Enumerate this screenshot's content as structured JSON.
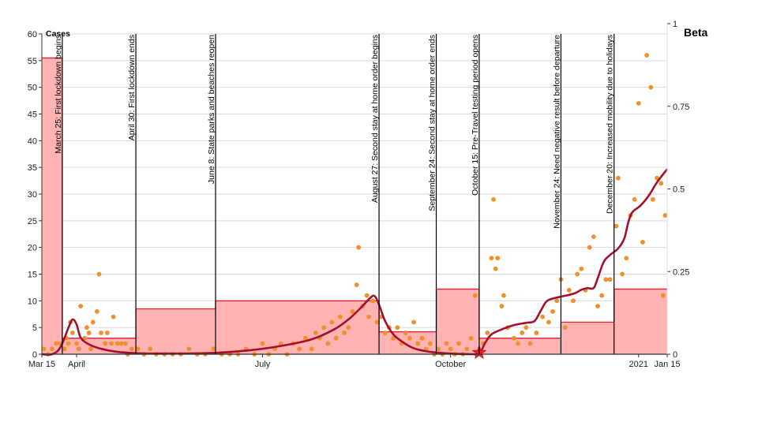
{
  "chart_data": {
    "type": "line",
    "left_axis_label": "Cases",
    "right_axis_label": "Beta",
    "x_range": [
      "2020-03-15",
      "2021-01-15"
    ],
    "x_ticks": [
      {
        "date": "2020-03-15",
        "label": "Mar 15"
      },
      {
        "date": "2020-04-01",
        "label": "April"
      },
      {
        "date": "2020-07-01",
        "label": "July"
      },
      {
        "date": "2020-10-01",
        "label": "October"
      },
      {
        "date": "2021-01-01",
        "label": "2021"
      },
      {
        "date": "2021-01-15",
        "label": "Jan 15"
      }
    ],
    "y_left_range": [
      0,
      60
    ],
    "y_left_ticks": [
      "0",
      "5",
      "10",
      "15",
      "20",
      "25",
      "30",
      "35",
      "40",
      "45",
      "50",
      "55",
      "60"
    ],
    "y_right_range": [
      0,
      1
    ],
    "y_right_ticks": [
      {
        "value": 0,
        "label": "0"
      },
      {
        "value": 0.25,
        "label": "0.25"
      },
      {
        "value": 0.5,
        "label": "0.5"
      },
      {
        "value": 0.75,
        "label": "0.75"
      },
      {
        "value": 1,
        "label": "1"
      }
    ],
    "grid": true,
    "colors": {
      "beta_line": "#a50f2d",
      "cases_dots": "#f28e2b",
      "step_fill": "#ffb3b3",
      "step_line": "#e8202f",
      "marker": "#e8202f"
    },
    "events": [
      {
        "date": "2020-03-25",
        "label": "March 25: First lockdown begins"
      },
      {
        "date": "2020-04-30",
        "label": "April 30: First lockdown ends"
      },
      {
        "date": "2020-06-08",
        "label": "June 8: State parks and beaches reopen"
      },
      {
        "date": "2020-08-27",
        "label": "August 27: Second stay at home order begins"
      },
      {
        "date": "2020-09-24",
        "label": "September 24: Second stay at home order ends"
      },
      {
        "date": "2020-10-15",
        "label": "October 15: Pre-Travel testing period opens"
      },
      {
        "date": "2020-11-24",
        "label": "November 24: Need negative result before departure"
      },
      {
        "date": "2020-12-20",
        "label": "December 20: Increased mobility due to holidays"
      }
    ],
    "step_series": [
      {
        "start": "2020-03-15",
        "end": "2020-03-25",
        "value": 55.5
      },
      {
        "start": "2020-03-25",
        "end": "2020-04-30",
        "value": 3
      },
      {
        "start": "2020-04-30",
        "end": "2020-06-08",
        "value": 8.5
      },
      {
        "start": "2020-06-08",
        "end": "2020-08-27",
        "value": 10
      },
      {
        "start": "2020-08-27",
        "end": "2020-09-24",
        "value": 4.2
      },
      {
        "start": "2020-09-24",
        "end": "2020-10-15",
        "value": 12.2
      },
      {
        "start": "2020-10-15",
        "end": "2020-11-24",
        "value": 3
      },
      {
        "start": "2020-11-24",
        "end": "2020-12-20",
        "value": 6
      },
      {
        "start": "2020-12-20",
        "end": "2021-01-15",
        "value": 12.2
      }
    ],
    "beta_series": [
      [
        "2020-03-15",
        0.0
      ],
      [
        "2020-03-20",
        0.0
      ],
      [
        "2020-03-24",
        0.02
      ],
      [
        "2020-03-28",
        0.08
      ],
      [
        "2020-03-30",
        0.105
      ],
      [
        "2020-04-01",
        0.09
      ],
      [
        "2020-04-03",
        0.05
      ],
      [
        "2020-04-07",
        0.03
      ],
      [
        "2020-04-12",
        0.018
      ],
      [
        "2020-04-20",
        0.008
      ],
      [
        "2020-05-01",
        0.003
      ],
      [
        "2020-05-20",
        0.002
      ],
      [
        "2020-06-08",
        0.004
      ],
      [
        "2020-06-25",
        0.012
      ],
      [
        "2020-07-10",
        0.025
      ],
      [
        "2020-07-25",
        0.045
      ],
      [
        "2020-08-05",
        0.075
      ],
      [
        "2020-08-12",
        0.105
      ],
      [
        "2020-08-18",
        0.14
      ],
      [
        "2020-08-23",
        0.172
      ],
      [
        "2020-08-25",
        0.175
      ],
      [
        "2020-08-27",
        0.15
      ],
      [
        "2020-08-30",
        0.1
      ],
      [
        "2020-09-03",
        0.06
      ],
      [
        "2020-09-08",
        0.035
      ],
      [
        "2020-09-13",
        0.018
      ],
      [
        "2020-09-20",
        0.008
      ],
      [
        "2020-10-01",
        0.002
      ],
      [
        "2020-10-12",
        0.0
      ],
      [
        "2020-10-15",
        0.0
      ],
      [
        "2020-10-18",
        0.035
      ],
      [
        "2020-10-21",
        0.06
      ],
      [
        "2020-10-26",
        0.075
      ],
      [
        "2020-11-01",
        0.088
      ],
      [
        "2020-11-07",
        0.095
      ],
      [
        "2020-11-11",
        0.1
      ],
      [
        "2020-11-14",
        0.13
      ],
      [
        "2020-11-17",
        0.16
      ],
      [
        "2020-11-21",
        0.17
      ],
      [
        "2020-11-27",
        0.178
      ],
      [
        "2020-12-01",
        0.185
      ],
      [
        "2020-12-04",
        0.195
      ],
      [
        "2020-12-07",
        0.2
      ],
      [
        "2020-12-10",
        0.2
      ],
      [
        "2020-12-12",
        0.23
      ],
      [
        "2020-12-15",
        0.28
      ],
      [
        "2020-12-18",
        0.3
      ],
      [
        "2020-12-22",
        0.32
      ],
      [
        "2020-12-25",
        0.35
      ],
      [
        "2020-12-27",
        0.4
      ],
      [
        "2020-12-29",
        0.43
      ],
      [
        "2021-01-02",
        0.45
      ],
      [
        "2021-01-06",
        0.48
      ],
      [
        "2021-01-10",
        0.52
      ],
      [
        "2021-01-15",
        0.56
      ]
    ],
    "cases_points": [
      [
        "2020-03-16",
        1
      ],
      [
        "2020-03-18",
        0
      ],
      [
        "2020-03-20",
        1
      ],
      [
        "2020-03-22",
        2
      ],
      [
        "2020-03-24",
        2
      ],
      [
        "2020-03-26",
        1
      ],
      [
        "2020-03-27",
        3
      ],
      [
        "2020-03-28",
        2
      ],
      [
        "2020-03-29",
        6
      ],
      [
        "2020-03-30",
        4
      ],
      [
        "2020-04-01",
        2
      ],
      [
        "2020-04-02",
        1
      ],
      [
        "2020-04-03",
        9
      ],
      [
        "2020-04-05",
        3
      ],
      [
        "2020-04-06",
        5
      ],
      [
        "2020-04-07",
        4
      ],
      [
        "2020-04-08",
        1
      ],
      [
        "2020-04-09",
        6
      ],
      [
        "2020-04-11",
        8
      ],
      [
        "2020-04-12",
        15
      ],
      [
        "2020-04-13",
        4
      ],
      [
        "2020-04-15",
        2
      ],
      [
        "2020-04-16",
        4
      ],
      [
        "2020-04-18",
        2
      ],
      [
        "2020-04-19",
        7
      ],
      [
        "2020-04-21",
        2
      ],
      [
        "2020-04-23",
        2
      ],
      [
        "2020-04-25",
        2
      ],
      [
        "2020-04-26",
        0
      ],
      [
        "2020-04-28",
        1
      ],
      [
        "2020-05-01",
        1
      ],
      [
        "2020-05-04",
        0
      ],
      [
        "2020-05-07",
        1
      ],
      [
        "2020-05-10",
        0
      ],
      [
        "2020-05-14",
        0
      ],
      [
        "2020-05-18",
        0
      ],
      [
        "2020-05-22",
        0
      ],
      [
        "2020-05-26",
        1
      ],
      [
        "2020-05-30",
        0
      ],
      [
        "2020-06-03",
        0
      ],
      [
        "2020-06-07",
        1
      ],
      [
        "2020-06-11",
        0
      ],
      [
        "2020-06-15",
        0
      ],
      [
        "2020-06-19",
        0
      ],
      [
        "2020-06-23",
        1
      ],
      [
        "2020-06-27",
        0
      ],
      [
        "2020-07-01",
        2
      ],
      [
        "2020-07-04",
        0
      ],
      [
        "2020-07-07",
        1
      ],
      [
        "2020-07-10",
        2
      ],
      [
        "2020-07-13",
        0
      ],
      [
        "2020-07-16",
        2
      ],
      [
        "2020-07-19",
        1
      ],
      [
        "2020-07-22",
        3
      ],
      [
        "2020-07-25",
        1
      ],
      [
        "2020-07-27",
        4
      ],
      [
        "2020-07-29",
        3
      ],
      [
        "2020-07-31",
        5
      ],
      [
        "2020-08-02",
        2
      ],
      [
        "2020-08-04",
        6
      ],
      [
        "2020-08-06",
        3
      ],
      [
        "2020-08-08",
        7
      ],
      [
        "2020-08-10",
        4
      ],
      [
        "2020-08-12",
        5
      ],
      [
        "2020-08-14",
        8
      ],
      [
        "2020-08-16",
        13
      ],
      [
        "2020-08-17",
        20
      ],
      [
        "2020-08-19",
        9
      ],
      [
        "2020-08-21",
        11
      ],
      [
        "2020-08-22",
        7
      ],
      [
        "2020-08-24",
        10
      ],
      [
        "2020-08-26",
        6
      ],
      [
        "2020-08-28",
        7
      ],
      [
        "2020-08-30",
        4
      ],
      [
        "2020-09-01",
        5
      ],
      [
        "2020-09-03",
        3
      ],
      [
        "2020-09-05",
        5
      ],
      [
        "2020-09-07",
        2
      ],
      [
        "2020-09-09",
        4
      ],
      [
        "2020-09-11",
        3
      ],
      [
        "2020-09-13",
        6
      ],
      [
        "2020-09-15",
        2
      ],
      [
        "2020-09-17",
        3
      ],
      [
        "2020-09-19",
        1
      ],
      [
        "2020-09-21",
        2
      ],
      [
        "2020-09-23",
        0
      ],
      [
        "2020-09-25",
        1
      ],
      [
        "2020-09-27",
        0
      ],
      [
        "2020-09-29",
        2
      ],
      [
        "2020-10-01",
        1
      ],
      [
        "2020-10-03",
        0
      ],
      [
        "2020-10-05",
        2
      ],
      [
        "2020-10-07",
        0
      ],
      [
        "2020-10-09",
        1
      ],
      [
        "2020-10-11",
        3
      ],
      [
        "2020-10-13",
        11
      ],
      [
        "2020-10-17",
        2
      ],
      [
        "2020-10-19",
        4
      ],
      [
        "2020-10-21",
        18
      ],
      [
        "2020-10-22",
        29
      ],
      [
        "2020-10-23",
        16
      ],
      [
        "2020-10-24",
        18
      ],
      [
        "2020-10-26",
        9
      ],
      [
        "2020-10-27",
        11
      ],
      [
        "2020-10-29",
        5
      ],
      [
        "2020-11-01",
        3
      ],
      [
        "2020-11-03",
        2
      ],
      [
        "2020-11-05",
        4
      ],
      [
        "2020-11-07",
        5
      ],
      [
        "2020-11-09",
        2
      ],
      [
        "2020-11-12",
        4
      ],
      [
        "2020-11-15",
        7
      ],
      [
        "2020-11-18",
        6
      ],
      [
        "2020-11-20",
        8
      ],
      [
        "2020-11-22",
        10
      ],
      [
        "2020-11-24",
        14
      ],
      [
        "2020-11-26",
        5
      ],
      [
        "2020-11-28",
        12
      ],
      [
        "2020-11-30",
        10
      ],
      [
        "2020-12-02",
        15
      ],
      [
        "2020-12-04",
        16
      ],
      [
        "2020-12-06",
        12
      ],
      [
        "2020-12-08",
        20
      ],
      [
        "2020-12-10",
        22
      ],
      [
        "2020-12-12",
        9
      ],
      [
        "2020-12-14",
        11
      ],
      [
        "2020-12-16",
        14
      ],
      [
        "2020-12-18",
        14
      ],
      [
        "2020-12-21",
        24
      ],
      [
        "2020-12-22",
        33
      ],
      [
        "2020-12-24",
        15
      ],
      [
        "2020-12-26",
        18
      ],
      [
        "2020-12-28",
        26
      ],
      [
        "2020-12-30",
        29
      ],
      [
        "2021-01-01",
        47
      ],
      [
        "2021-01-03",
        21
      ],
      [
        "2021-01-05",
        56
      ],
      [
        "2021-01-07",
        50
      ],
      [
        "2021-01-08",
        29
      ],
      [
        "2021-01-10",
        33
      ],
      [
        "2021-01-12",
        32
      ],
      [
        "2021-01-13",
        11
      ],
      [
        "2021-01-14",
        26
      ]
    ],
    "marker_date": "2020-10-15"
  }
}
